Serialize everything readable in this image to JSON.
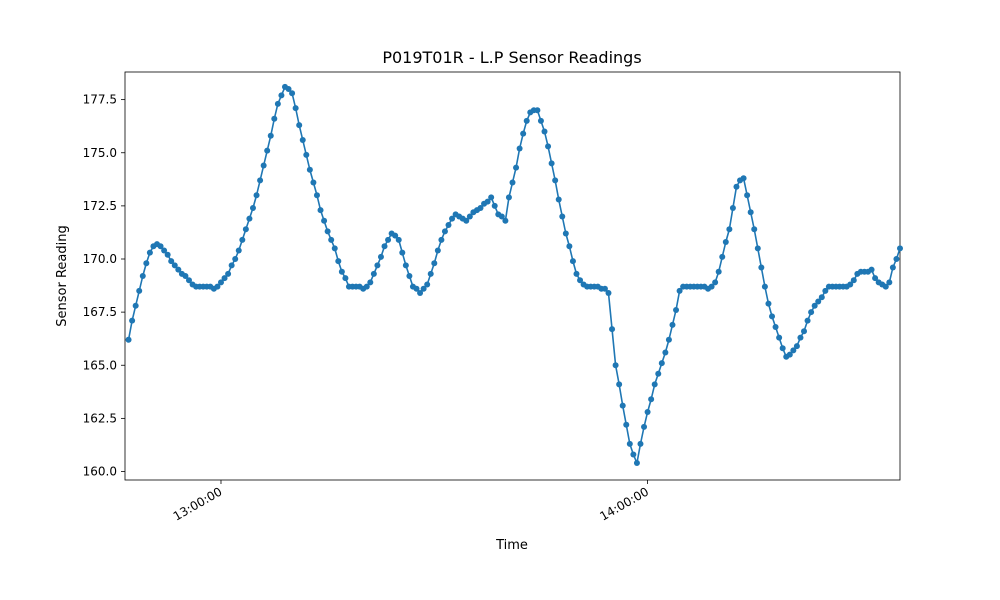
{
  "chart_data": {
    "type": "line",
    "title": "P019T01R - L.P Sensor Readings",
    "xlabel": "Time",
    "ylabel": "Sensor Reading",
    "x_ticks": [
      "13:00:00",
      "14:00:00"
    ],
    "y_ticks": [
      160.0,
      162.5,
      165.0,
      167.5,
      170.0,
      172.5,
      175.0,
      177.5
    ],
    "y_tick_labels": [
      "160.0",
      "162.5",
      "165.0",
      "167.5",
      "170.0",
      "172.5",
      "175.0",
      "177.5"
    ],
    "ylim": [
      159.6,
      178.8
    ],
    "xlim": [
      "12:46:30",
      "14:35:30"
    ],
    "grid": false,
    "legend": "none",
    "series": [
      {
        "color": "#1f77b4",
        "marker": "circle",
        "points": [
          [
            "12:47:00",
            166.2
          ],
          [
            "12:47:30",
            167.1
          ],
          [
            "12:48:00",
            167.8
          ],
          [
            "12:48:30",
            168.5
          ],
          [
            "12:49:00",
            169.2
          ],
          [
            "12:49:30",
            169.8
          ],
          [
            "12:50:00",
            170.3
          ],
          [
            "12:50:30",
            170.6
          ],
          [
            "12:51:00",
            170.7
          ],
          [
            "12:51:30",
            170.6
          ],
          [
            "12:52:00",
            170.4
          ],
          [
            "12:52:30",
            170.2
          ],
          [
            "12:53:00",
            169.9
          ],
          [
            "12:53:30",
            169.7
          ],
          [
            "12:54:00",
            169.5
          ],
          [
            "12:54:30",
            169.3
          ],
          [
            "12:55:00",
            169.2
          ],
          [
            "12:55:30",
            169.0
          ],
          [
            "12:56:00",
            168.8
          ],
          [
            "12:56:30",
            168.7
          ],
          [
            "12:57:00",
            168.7
          ],
          [
            "12:57:30",
            168.7
          ],
          [
            "12:58:00",
            168.7
          ],
          [
            "12:58:30",
            168.7
          ],
          [
            "12:59:00",
            168.6
          ],
          [
            "12:59:30",
            168.7
          ],
          [
            "13:00:00",
            168.9
          ],
          [
            "13:00:30",
            169.1
          ],
          [
            "13:01:00",
            169.3
          ],
          [
            "13:01:30",
            169.7
          ],
          [
            "13:02:00",
            170.0
          ],
          [
            "13:02:30",
            170.4
          ],
          [
            "13:03:00",
            170.9
          ],
          [
            "13:03:30",
            171.4
          ],
          [
            "13:04:00",
            171.9
          ],
          [
            "13:04:30",
            172.4
          ],
          [
            "13:05:00",
            173.0
          ],
          [
            "13:05:30",
            173.7
          ],
          [
            "13:06:00",
            174.4
          ],
          [
            "13:06:30",
            175.1
          ],
          [
            "13:07:00",
            175.8
          ],
          [
            "13:07:30",
            176.6
          ],
          [
            "13:08:00",
            177.3
          ],
          [
            "13:08:30",
            177.7
          ],
          [
            "13:09:00",
            178.1
          ],
          [
            "13:09:30",
            178.0
          ],
          [
            "13:10:00",
            177.8
          ],
          [
            "13:10:30",
            177.1
          ],
          [
            "13:11:00",
            176.3
          ],
          [
            "13:11:30",
            175.6
          ],
          [
            "13:12:00",
            174.9
          ],
          [
            "13:12:30",
            174.2
          ],
          [
            "13:13:00",
            173.6
          ],
          [
            "13:13:30",
            173.0
          ],
          [
            "13:14:00",
            172.3
          ],
          [
            "13:14:30",
            171.8
          ],
          [
            "13:15:00",
            171.3
          ],
          [
            "13:15:30",
            170.9
          ],
          [
            "13:16:00",
            170.5
          ],
          [
            "13:16:30",
            169.9
          ],
          [
            "13:17:00",
            169.4
          ],
          [
            "13:17:30",
            169.1
          ],
          [
            "13:18:00",
            168.7
          ],
          [
            "13:18:30",
            168.7
          ],
          [
            "13:19:00",
            168.7
          ],
          [
            "13:19:30",
            168.7
          ],
          [
            "13:20:00",
            168.6
          ],
          [
            "13:20:30",
            168.7
          ],
          [
            "13:21:00",
            168.9
          ],
          [
            "13:21:30",
            169.3
          ],
          [
            "13:22:00",
            169.7
          ],
          [
            "13:22:30",
            170.1
          ],
          [
            "13:23:00",
            170.6
          ],
          [
            "13:23:30",
            170.9
          ],
          [
            "13:24:00",
            171.2
          ],
          [
            "13:24:30",
            171.1
          ],
          [
            "13:25:00",
            170.9
          ],
          [
            "13:25:30",
            170.3
          ],
          [
            "13:26:00",
            169.7
          ],
          [
            "13:26:30",
            169.2
          ],
          [
            "13:27:00",
            168.7
          ],
          [
            "13:27:30",
            168.6
          ],
          [
            "13:28:00",
            168.4
          ],
          [
            "13:28:30",
            168.6
          ],
          [
            "13:29:00",
            168.8
          ],
          [
            "13:29:30",
            169.3
          ],
          [
            "13:30:00",
            169.8
          ],
          [
            "13:30:30",
            170.4
          ],
          [
            "13:31:00",
            170.9
          ],
          [
            "13:31:30",
            171.3
          ],
          [
            "13:32:00",
            171.6
          ],
          [
            "13:32:30",
            171.9
          ],
          [
            "13:33:00",
            172.1
          ],
          [
            "13:33:30",
            172.0
          ],
          [
            "13:34:00",
            171.9
          ],
          [
            "13:34:30",
            171.8
          ],
          [
            "13:35:00",
            172.0
          ],
          [
            "13:35:30",
            172.2
          ],
          [
            "13:36:00",
            172.3
          ],
          [
            "13:36:30",
            172.4
          ],
          [
            "13:37:00",
            172.6
          ],
          [
            "13:37:30",
            172.7
          ],
          [
            "13:38:00",
            172.9
          ],
          [
            "13:38:30",
            172.5
          ],
          [
            "13:39:00",
            172.1
          ],
          [
            "13:39:30",
            172.0
          ],
          [
            "13:40:00",
            171.8
          ],
          [
            "13:40:30",
            172.9
          ],
          [
            "13:41:00",
            173.6
          ],
          [
            "13:41:30",
            174.3
          ],
          [
            "13:42:00",
            175.2
          ],
          [
            "13:42:30",
            175.9
          ],
          [
            "13:43:00",
            176.5
          ],
          [
            "13:43:30",
            176.9
          ],
          [
            "13:44:00",
            177.0
          ],
          [
            "13:44:30",
            177.0
          ],
          [
            "13:45:00",
            176.5
          ],
          [
            "13:45:30",
            176.0
          ],
          [
            "13:46:00",
            175.3
          ],
          [
            "13:46:30",
            174.5
          ],
          [
            "13:47:00",
            173.7
          ],
          [
            "13:47:30",
            172.8
          ],
          [
            "13:48:00",
            172.0
          ],
          [
            "13:48:30",
            171.2
          ],
          [
            "13:49:00",
            170.6
          ],
          [
            "13:49:30",
            169.9
          ],
          [
            "13:50:00",
            169.3
          ],
          [
            "13:50:30",
            169.0
          ],
          [
            "13:51:00",
            168.8
          ],
          [
            "13:51:30",
            168.7
          ],
          [
            "13:52:00",
            168.7
          ],
          [
            "13:52:30",
            168.7
          ],
          [
            "13:53:00",
            168.7
          ],
          [
            "13:53:30",
            168.6
          ],
          [
            "13:54:00",
            168.6
          ],
          [
            "13:54:30",
            168.4
          ],
          [
            "13:55:00",
            166.7
          ],
          [
            "13:55:30",
            165.0
          ],
          [
            "13:56:00",
            164.1
          ],
          [
            "13:56:30",
            163.1
          ],
          [
            "13:57:00",
            162.2
          ],
          [
            "13:57:30",
            161.3
          ],
          [
            "13:58:00",
            160.8
          ],
          [
            "13:58:30",
            160.4
          ],
          [
            "13:59:00",
            161.3
          ],
          [
            "13:59:30",
            162.1
          ],
          [
            "14:00:00",
            162.8
          ],
          [
            "14:00:30",
            163.4
          ],
          [
            "14:01:00",
            164.1
          ],
          [
            "14:01:30",
            164.6
          ],
          [
            "14:02:00",
            165.1
          ],
          [
            "14:02:30",
            165.6
          ],
          [
            "14:03:00",
            166.2
          ],
          [
            "14:03:30",
            166.9
          ],
          [
            "14:04:00",
            167.6
          ],
          [
            "14:04:30",
            168.5
          ],
          [
            "14:05:00",
            168.7
          ],
          [
            "14:05:30",
            168.7
          ],
          [
            "14:06:00",
            168.7
          ],
          [
            "14:06:30",
            168.7
          ],
          [
            "14:07:00",
            168.7
          ],
          [
            "14:07:30",
            168.7
          ],
          [
            "14:08:00",
            168.7
          ],
          [
            "14:08:30",
            168.6
          ],
          [
            "14:09:00",
            168.7
          ],
          [
            "14:09:30",
            168.9
          ],
          [
            "14:10:00",
            169.4
          ],
          [
            "14:10:30",
            170.1
          ],
          [
            "14:11:00",
            170.8
          ],
          [
            "14:11:30",
            171.4
          ],
          [
            "14:12:00",
            172.4
          ],
          [
            "14:12:30",
            173.4
          ],
          [
            "14:13:00",
            173.7
          ],
          [
            "14:13:30",
            173.8
          ],
          [
            "14:14:00",
            173.0
          ],
          [
            "14:14:30",
            172.2
          ],
          [
            "14:15:00",
            171.4
          ],
          [
            "14:15:30",
            170.5
          ],
          [
            "14:16:00",
            169.6
          ],
          [
            "14:16:30",
            168.7
          ],
          [
            "14:17:00",
            167.9
          ],
          [
            "14:17:30",
            167.3
          ],
          [
            "14:18:00",
            166.8
          ],
          [
            "14:18:30",
            166.3
          ],
          [
            "14:19:00",
            165.8
          ],
          [
            "14:19:30",
            165.4
          ],
          [
            "14:20:00",
            165.5
          ],
          [
            "14:20:30",
            165.7
          ],
          [
            "14:21:00",
            165.9
          ],
          [
            "14:21:30",
            166.3
          ],
          [
            "14:22:00",
            166.6
          ],
          [
            "14:22:30",
            167.1
          ],
          [
            "14:23:00",
            167.5
          ],
          [
            "14:23:30",
            167.8
          ],
          [
            "14:24:00",
            168.0
          ],
          [
            "14:24:30",
            168.2
          ],
          [
            "14:25:00",
            168.5
          ],
          [
            "14:25:30",
            168.7
          ],
          [
            "14:26:00",
            168.7
          ],
          [
            "14:26:30",
            168.7
          ],
          [
            "14:27:00",
            168.7
          ],
          [
            "14:27:30",
            168.7
          ],
          [
            "14:28:00",
            168.7
          ],
          [
            "14:28:30",
            168.8
          ],
          [
            "14:29:00",
            169.0
          ],
          [
            "14:29:30",
            169.3
          ],
          [
            "14:30:00",
            169.4
          ],
          [
            "14:30:30",
            169.4
          ],
          [
            "14:31:00",
            169.4
          ],
          [
            "14:31:30",
            169.5
          ],
          [
            "14:32:00",
            169.1
          ],
          [
            "14:32:30",
            168.9
          ],
          [
            "14:33:00",
            168.8
          ],
          [
            "14:33:30",
            168.7
          ],
          [
            "14:34:00",
            168.9
          ],
          [
            "14:34:30",
            169.6
          ],
          [
            "14:35:00",
            170.0
          ],
          [
            "14:35:30",
            170.5
          ]
        ]
      }
    ]
  }
}
